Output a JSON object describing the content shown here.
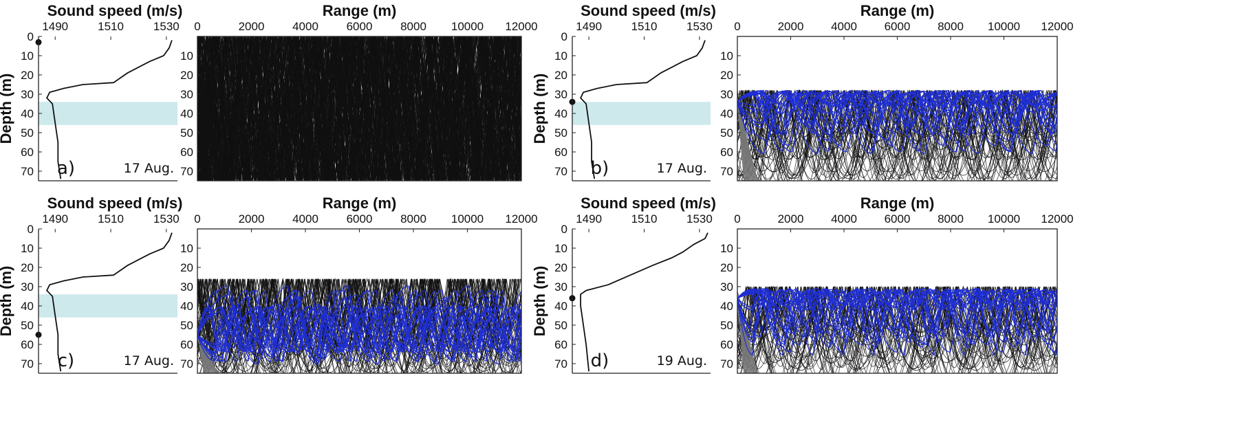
{
  "chart_data": {
    "type": "multi-panel",
    "colors": {
      "band": "#cde9ec",
      "ray": "#111111",
      "trapped_ray": "#1f2fd6",
      "frame": "#222222"
    },
    "sound_speed_axis": {
      "title": "Sound speed (m/s)",
      "ticks": [
        1490,
        1510,
        1530
      ],
      "xlim": [
        1484,
        1534
      ]
    },
    "range_axis": {
      "title": "Range (m)",
      "ticks": [
        0,
        2000,
        4000,
        6000,
        8000,
        10000,
        12000
      ],
      "xlim": [
        0,
        12000
      ]
    },
    "depth_axis": {
      "title": "Depth (m)",
      "ticks": [
        0,
        10,
        20,
        30,
        40,
        50,
        60,
        70
      ],
      "ylim": [
        0,
        75
      ]
    },
    "panels": [
      {
        "label": "a)",
        "date": "17 Aug.",
        "source_depth": 3,
        "band": [
          34,
          46
        ],
        "profile": [
          [
            1532,
            2
          ],
          [
            1531,
            6
          ],
          [
            1529,
            10
          ],
          [
            1524,
            13
          ],
          [
            1520,
            16
          ],
          [
            1516,
            19
          ],
          [
            1513,
            22
          ],
          [
            1511,
            24
          ],
          [
            1500,
            25
          ],
          [
            1493,
            27
          ],
          [
            1488,
            29
          ],
          [
            1487,
            32
          ],
          [
            1489,
            35
          ],
          [
            1490,
            45
          ],
          [
            1491,
            55
          ],
          [
            1491,
            65
          ],
          [
            1492,
            74
          ]
        ],
        "rays": {
          "style": "dense-black",
          "channel_top": 0
        }
      },
      {
        "label": "b)",
        "date": "17 Aug.",
        "source_depth": 34,
        "band": [
          34,
          46
        ],
        "profile": [
          [
            1532,
            2
          ],
          [
            1531,
            6
          ],
          [
            1529,
            10
          ],
          [
            1524,
            13
          ],
          [
            1520,
            16
          ],
          [
            1516,
            19
          ],
          [
            1513,
            22
          ],
          [
            1511,
            24
          ],
          [
            1500,
            25
          ],
          [
            1493,
            27
          ],
          [
            1488,
            29
          ],
          [
            1487,
            32
          ],
          [
            1489,
            35
          ],
          [
            1490,
            45
          ],
          [
            1491,
            55
          ],
          [
            1491,
            65
          ],
          [
            1492,
            74
          ]
        ],
        "rays": {
          "style": "ducted",
          "channel_top": 28,
          "trapped_axis": 32
        }
      },
      {
        "label": "c)",
        "date": "17 Aug.",
        "source_depth": 55,
        "band": [
          34,
          46
        ],
        "profile": [
          [
            1532,
            2
          ],
          [
            1531,
            6
          ],
          [
            1529,
            10
          ],
          [
            1524,
            13
          ],
          [
            1520,
            16
          ],
          [
            1516,
            19
          ],
          [
            1513,
            22
          ],
          [
            1511,
            24
          ],
          [
            1500,
            25
          ],
          [
            1493,
            27
          ],
          [
            1488,
            29
          ],
          [
            1487,
            32
          ],
          [
            1489,
            35
          ],
          [
            1490,
            45
          ],
          [
            1491,
            55
          ],
          [
            1491,
            65
          ],
          [
            1492,
            74
          ]
        ],
        "rays": {
          "style": "deep-source",
          "channel_top": 26,
          "trapped_axis": 55
        }
      },
      {
        "label": "d)",
        "date": "19 Aug.",
        "source_depth": 36,
        "band": null,
        "profile": [
          [
            1533,
            2
          ],
          [
            1532,
            5
          ],
          [
            1528,
            8
          ],
          [
            1524,
            12
          ],
          [
            1520,
            15
          ],
          [
            1513,
            19
          ],
          [
            1505,
            24
          ],
          [
            1497,
            29
          ],
          [
            1489,
            32
          ],
          [
            1487,
            34
          ],
          [
            1487,
            40
          ],
          [
            1488,
            50
          ],
          [
            1489,
            60
          ],
          [
            1490,
            74
          ]
        ],
        "rays": {
          "style": "ducted",
          "channel_top": 30,
          "trapped_axis": 35
        }
      }
    ]
  }
}
